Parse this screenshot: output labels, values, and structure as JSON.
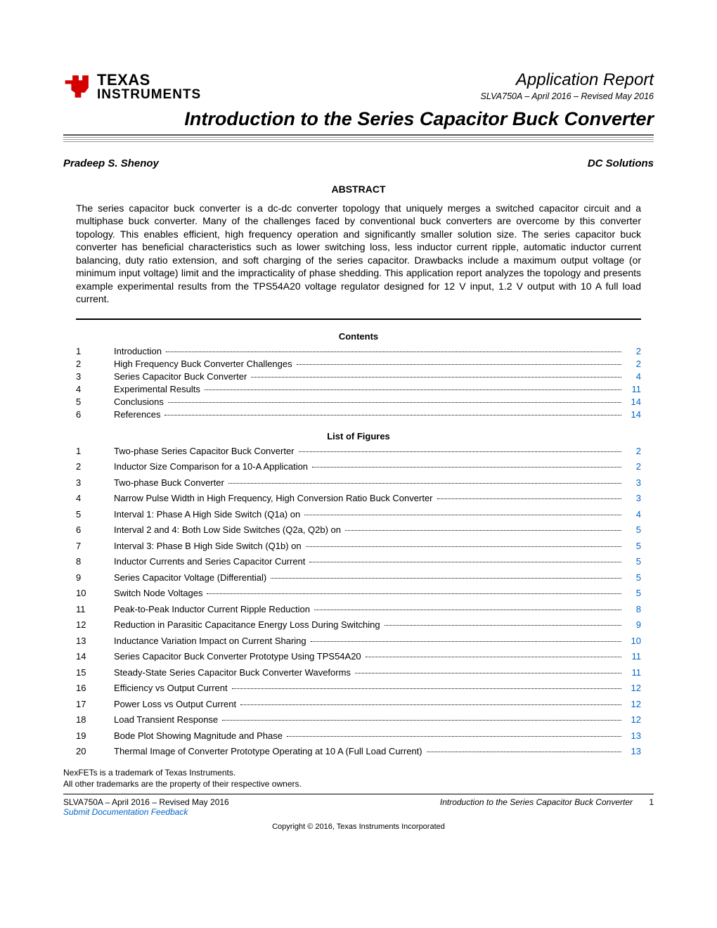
{
  "logo": {
    "brand_line1": "TEXAS",
    "brand_line2": "INSTRUMENTS",
    "mark_color": "#d40000",
    "text_color": "#000000"
  },
  "header": {
    "report_type": "Application Report",
    "doc_id": "SLVA750A – April 2016 – Revised May 2016"
  },
  "title": "Introduction to the Series Capacitor Buck Converter",
  "author": "Pradeep S. Shenoy",
  "group": "DC Solutions",
  "abstract": {
    "heading": "ABSTRACT",
    "body": "The series capacitor buck converter is a dc-dc converter topology that uniquely merges a switched capacitor circuit and a multiphase buck converter. Many of the challenges faced by conventional buck converters are overcome by this converter topology. This enables efficient, high frequency operation and significantly smaller solution size. The series capacitor buck converter has beneficial characteristics such as lower switching loss, less inductor current ripple, automatic inductor current balancing, duty ratio extension, and soft charging of the series capacitor. Drawbacks include a maximum output voltage (or minimum input voltage) limit and the impracticality of phase shedding. This application report analyzes the topology and presents example experimental results from the TPS54A20 voltage regulator designed for 12 V input, 1.2 V output with 10 A full load current."
  },
  "contents": {
    "heading": "Contents",
    "items": [
      {
        "n": "1",
        "label": "Introduction",
        "page": "2"
      },
      {
        "n": "2",
        "label": "High Frequency Buck Converter Challenges",
        "page": "2"
      },
      {
        "n": "3",
        "label": "Series Capacitor Buck Converter",
        "page": "4"
      },
      {
        "n": "4",
        "label": "Experimental Results",
        "page": "11"
      },
      {
        "n": "5",
        "label": "Conclusions",
        "page": "14"
      },
      {
        "n": "6",
        "label": "References",
        "page": "14"
      }
    ]
  },
  "figures": {
    "heading": "List of Figures",
    "items": [
      {
        "n": "1",
        "label": "Two-phase Series Capacitor Buck Converter",
        "page": "2"
      },
      {
        "n": "2",
        "label": "Inductor Size Comparison for a 10-A Application",
        "page": "2"
      },
      {
        "n": "3",
        "label": "Two-phase Buck Converter",
        "page": "3"
      },
      {
        "n": "4",
        "label": "Narrow Pulse Width in High Frequency, High Conversion Ratio Buck Converter",
        "page": "3"
      },
      {
        "n": "5",
        "label": "Interval 1: Phase A High Side Switch (Q1a) on",
        "page": "4"
      },
      {
        "n": "6",
        "label": "Interval 2 and 4: Both Low Side Switches (Q2a, Q2b) on",
        "page": "5"
      },
      {
        "n": "7",
        "label": "Interval 3: Phase B High Side Switch (Q1b) on",
        "page": "5"
      },
      {
        "n": "8",
        "label": "Inductor Currents and Series Capacitor Current",
        "page": "5"
      },
      {
        "n": "9",
        "label": "Series Capacitor Voltage (Differential)",
        "page": "5"
      },
      {
        "n": "10",
        "label": "Switch Node Voltages",
        "page": "5"
      },
      {
        "n": "11",
        "label": "Peak-to-Peak Inductor Current Ripple Reduction",
        "page": "8"
      },
      {
        "n": "12",
        "label": "Reduction in Parasitic Capacitance Energy Loss During Switching",
        "page": "9"
      },
      {
        "n": "13",
        "label": "Inductance Variation Impact on Current Sharing",
        "page": "10"
      },
      {
        "n": "14",
        "label": "Series Capacitor Buck Converter Prototype Using TPS54A20",
        "page": "11"
      },
      {
        "n": "15",
        "label": "Steady-State Series Capacitor Buck Converter Waveforms",
        "page": "11"
      },
      {
        "n": "16",
        "label": "Efficiency vs Output Current",
        "page": "12"
      },
      {
        "n": "17",
        "label": "Power Loss vs Output Current",
        "page": "12"
      },
      {
        "n": "18",
        "label": "Load Transient Response",
        "page": "12"
      },
      {
        "n": "19",
        "label": "Bode Plot Showing Magnitude and Phase",
        "page": "13"
      },
      {
        "n": "20",
        "label": "Thermal Image of Converter Prototype Operating at 10 A (Full Load Current)",
        "page": "13"
      }
    ]
  },
  "trademarks": {
    "line1": "NexFETs is a trademark of Texas Instruments.",
    "line2": "All other trademarks are the property of their respective owners."
  },
  "footer": {
    "left": "SLVA750A – April 2016 – Revised May 2016",
    "link": "Submit Documentation Feedback",
    "title": "Introduction to the Series Capacitor Buck Converter",
    "page": "1",
    "copyright": "Copyright © 2016, Texas Instruments Incorporated"
  },
  "colors": {
    "link": "#0066cc",
    "body_text": "#000000",
    "rule_gray": "#999999"
  }
}
